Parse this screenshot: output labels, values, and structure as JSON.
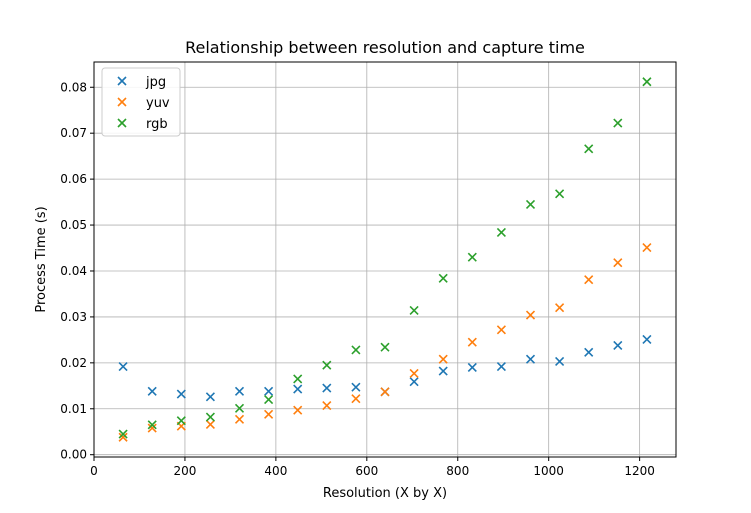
{
  "chart_data": {
    "type": "scatter",
    "title": "Relationship between resolution and capture time",
    "xlabel": "Resolution (X by X)",
    "ylabel": "Process Time (s)",
    "xlim": [
      0,
      1280
    ],
    "ylim": [
      -0.0005,
      0.0855
    ],
    "xticks": [
      0,
      200,
      400,
      600,
      800,
      1000,
      1200
    ],
    "yticks": [
      0.0,
      0.01,
      0.02,
      0.03,
      0.04,
      0.05,
      0.06,
      0.07,
      0.08
    ],
    "ytick_labels": [
      "0.00",
      "0.01",
      "0.02",
      "0.03",
      "0.04",
      "0.05",
      "0.06",
      "0.07",
      "0.08"
    ],
    "grid": true,
    "legend_position": "top-left",
    "marker": "x",
    "x": [
      64,
      128,
      192,
      256,
      320,
      384,
      448,
      512,
      576,
      640,
      704,
      768,
      832,
      896,
      960,
      1024,
      1088,
      1152,
      1216
    ],
    "series": [
      {
        "name": "jpg",
        "color": "#1f77b4",
        "values": [
          0.0192,
          0.0138,
          0.0132,
          0.0126,
          0.0138,
          0.0138,
          0.0143,
          0.0145,
          0.0147,
          0.0137,
          0.0159,
          0.0182,
          0.019,
          0.0192,
          0.0208,
          0.0203,
          0.0223,
          0.0238,
          0.0251
        ]
      },
      {
        "name": "yuv",
        "color": "#ff7f0e",
        "values": [
          0.0038,
          0.0058,
          0.0062,
          0.0066,
          0.0077,
          0.0088,
          0.0097,
          0.0107,
          0.0122,
          0.0137,
          0.0177,
          0.0208,
          0.0245,
          0.0272,
          0.0304,
          0.032,
          0.0381,
          0.0418,
          0.0451
        ]
      },
      {
        "name": "rgb",
        "color": "#2ca02c",
        "values": [
          0.0045,
          0.0065,
          0.0074,
          0.0082,
          0.0101,
          0.012,
          0.0165,
          0.0195,
          0.0228,
          0.0234,
          0.0314,
          0.0384,
          0.043,
          0.0484,
          0.0545,
          0.0568,
          0.0666,
          0.0722,
          0.0812
        ]
      }
    ]
  }
}
